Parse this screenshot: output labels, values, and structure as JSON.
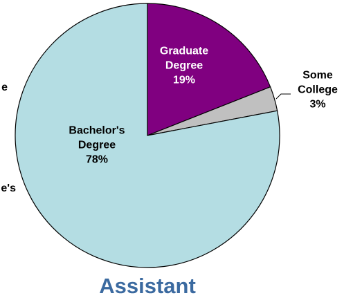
{
  "chart_data": {
    "type": "pie",
    "title": "Assistant",
    "categories": [
      "Graduate Degree",
      "Some College",
      "Bachelor's Degree"
    ],
    "values": [
      19,
      3,
      78
    ],
    "value_labels": [
      "19%",
      "3%",
      "78%"
    ],
    "colors": [
      "#800080",
      "#c0c0c0",
      "#b4dde3"
    ],
    "label_colors": [
      "#ffffff",
      "#000000",
      "#000000"
    ],
    "annotations": [
      "e",
      "e's"
    ]
  }
}
